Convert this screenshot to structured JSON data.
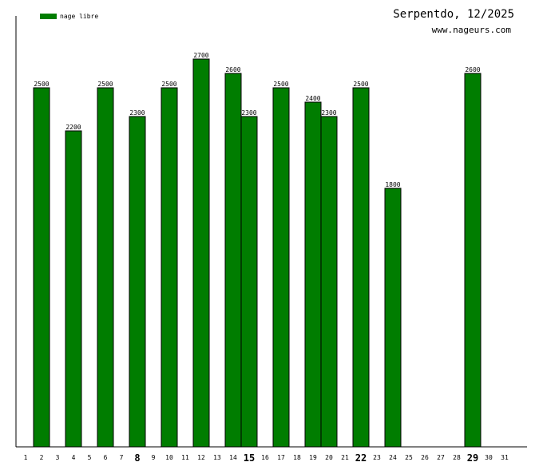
{
  "header": {
    "title": "Serpentdo, 12/2025",
    "subtitle": "www.nageurs.com"
  },
  "legend": {
    "label": "nage libre",
    "color": "#007d00"
  },
  "chart_data": {
    "type": "bar",
    "title": "Serpentdo, 12/2025",
    "xlabel": "",
    "ylabel": "",
    "ylim": [
      0,
      3000
    ],
    "grid": false,
    "legend_position": "top-left",
    "x": [
      "1",
      "2",
      "3",
      "4",
      "5",
      "6",
      "7",
      "8",
      "9",
      "10",
      "11",
      "12",
      "13",
      "14",
      "15",
      "16",
      "17",
      "18",
      "19",
      "20",
      "21",
      "22",
      "23",
      "24",
      "25",
      "26",
      "27",
      "28",
      "29",
      "30",
      "31"
    ],
    "emphasized_x": [
      "8",
      "15",
      "22",
      "29"
    ],
    "series": [
      {
        "name": "nage libre",
        "color": "#007d00",
        "points": [
          {
            "x": "2",
            "value": 2500
          },
          {
            "x": "4",
            "value": 2200
          },
          {
            "x": "6",
            "value": 2500
          },
          {
            "x": "8",
            "value": 2300
          },
          {
            "x": "10",
            "value": 2500
          },
          {
            "x": "12",
            "value": 2700
          },
          {
            "x": "14",
            "value": 2600
          },
          {
            "x": "15",
            "value": 2300
          },
          {
            "x": "17",
            "value": 2500
          },
          {
            "x": "19",
            "value": 2400
          },
          {
            "x": "20",
            "value": 2300
          },
          {
            "x": "22",
            "value": 2500
          },
          {
            "x": "24",
            "value": 1800
          },
          {
            "x": "29",
            "value": 2600
          }
        ]
      }
    ]
  }
}
